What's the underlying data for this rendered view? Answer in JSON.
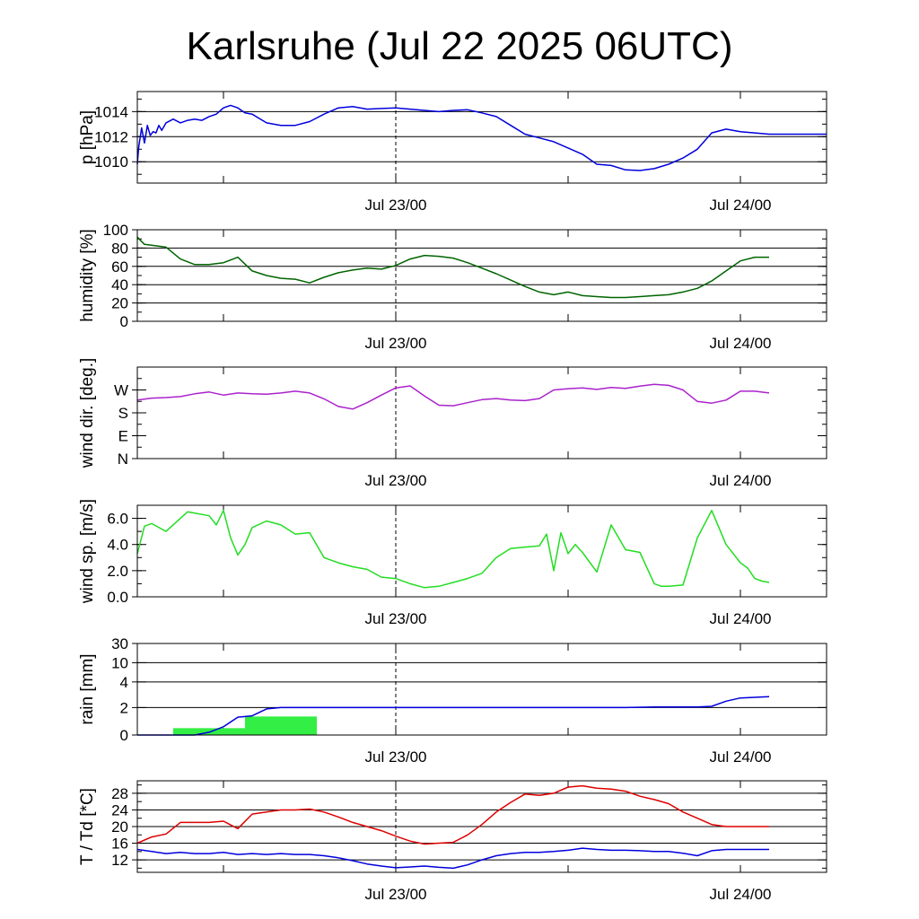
{
  "title": "Karlsruhe (Jul 22 2025 06UTC)",
  "chart_data": [
    {
      "type": "line",
      "ylabel": "p [hPa]",
      "xticks": [
        "Jul 23/00",
        "Jul 24/00"
      ],
      "ylim": [
        1008.3,
        1015.6
      ],
      "yticks": [
        1010,
        1012,
        1014
      ],
      "ytick_labels": [
        "1010",
        "1012",
        "1014"
      ],
      "grid_lines": [
        1010,
        1012,
        1014
      ],
      "colors": [
        "#0000dd"
      ],
      "series": [
        {
          "x": [
            6,
            6.1,
            6.3,
            6.5,
            6.7,
            6.9,
            7.1,
            7.3,
            7.5,
            7.7,
            8,
            8.5,
            9,
            9.5,
            10,
            10.5,
            11,
            11.5,
            12,
            12.5,
            13,
            13.5,
            14,
            15,
            16,
            17,
            18,
            19,
            20,
            21,
            22,
            23,
            24,
            25,
            26,
            27,
            28,
            29,
            30,
            31,
            32,
            33,
            34,
            35,
            36,
            37,
            38,
            39,
            40,
            41,
            42,
            43,
            44,
            45,
            46,
            47,
            48,
            49,
            50,
            51,
            52,
            53,
            54
          ],
          "y": [
            1009.8,
            1011.2,
            1012.7,
            1011.5,
            1012.9,
            1012.1,
            1012.4,
            1012.3,
            1012.9,
            1012.5,
            1013.1,
            1013.4,
            1013.1,
            1013.3,
            1013.4,
            1013.3,
            1013.6,
            1013.8,
            1014.3,
            1014.5,
            1014.3,
            1013.9,
            1013.8,
            1013.1,
            1012.9,
            1012.9,
            1013.2,
            1013.8,
            1014.3,
            1014.4,
            1014.2,
            1014.25,
            1014.3,
            1014.2,
            1014.1,
            1014.0,
            1014.1,
            1014.15,
            1013.9,
            1013.6,
            1012.9,
            1012.2,
            1011.9,
            1011.6,
            1011.1,
            1010.6,
            1009.8,
            1009.7,
            1009.35,
            1009.3,
            1009.45,
            1009.8,
            1010.3,
            1011.0,
            1012.3,
            1012.6,
            1012.4,
            1012.3,
            1012.2,
            1012.2,
            1012.2,
            1012.2,
            1012.2
          ]
        }
      ]
    },
    {
      "type": "line",
      "ylabel": "humidity [%]",
      "xticks": [
        "Jul 23/00",
        "Jul 24/00"
      ],
      "ylim": [
        0,
        100
      ],
      "yticks": [
        0,
        20,
        40,
        60,
        80,
        100
      ],
      "ytick_labels": [
        "0",
        "20",
        "40",
        "60",
        "80",
        "100"
      ],
      "grid_lines": [
        20,
        40,
        60,
        80
      ],
      "colors": [
        "#006400"
      ],
      "series": [
        {
          "x": [
            6,
            6.5,
            7,
            8,
            9,
            10,
            11,
            12,
            13,
            14,
            15,
            16,
            17,
            18,
            19,
            20,
            21,
            22,
            23,
            24,
            25,
            26,
            27,
            28,
            29,
            30,
            31,
            32,
            33,
            34,
            35,
            36,
            37,
            38,
            39,
            40,
            41,
            42,
            43,
            44,
            45,
            46,
            47,
            48,
            49,
            50
          ],
          "y": [
            92,
            84,
            83,
            81,
            68,
            62,
            62,
            64,
            70,
            55,
            50,
            47,
            46,
            42,
            48,
            53,
            56,
            58,
            57,
            61,
            68,
            72,
            71,
            69,
            64,
            58,
            52,
            45,
            38,
            32,
            29,
            32,
            28,
            27,
            26,
            26,
            27,
            28,
            29,
            32,
            36,
            44,
            55,
            66,
            70,
            70
          ]
        }
      ]
    },
    {
      "type": "line",
      "ylabel": "wind dir. [deg.]",
      "xticks": [
        "Jul 23/00",
        "Jul 24/00"
      ],
      "ylim": [
        0,
        360
      ],
      "yticks": [
        0,
        90,
        180,
        270
      ],
      "ytick_labels": [
        "N",
        "E",
        "S",
        "W"
      ],
      "grid_lines": [],
      "colors": [
        "#aa22cc"
      ],
      "series": [
        {
          "x": [
            6,
            7,
            8,
            9,
            10,
            11,
            12,
            13,
            14,
            15,
            16,
            17,
            18,
            19,
            20,
            21,
            22,
            23,
            24,
            25,
            26,
            27,
            28,
            29,
            30,
            31,
            32,
            33,
            34,
            35,
            36,
            37,
            38,
            39,
            40,
            41,
            42,
            43,
            44,
            45,
            46,
            47,
            48,
            49,
            50
          ],
          "y": [
            230,
            238,
            240,
            244,
            255,
            262,
            250,
            258,
            255,
            253,
            258,
            265,
            258,
            235,
            205,
            195,
            220,
            250,
            278,
            286,
            246,
            210,
            208,
            220,
            232,
            236,
            230,
            228,
            236,
            270,
            275,
            278,
            272,
            280,
            276,
            285,
            292,
            288,
            270,
            225,
            218,
            230,
            265,
            265,
            258
          ]
        }
      ]
    },
    {
      "type": "line",
      "ylabel": "wind sp. [m/s]",
      "xticks": [
        "Jul 23/00",
        "Jul 24/00"
      ],
      "ylim": [
        0,
        7
      ],
      "yticks": [
        0,
        2,
        4,
        6
      ],
      "ytick_labels": [
        "0.0",
        "2.0",
        "4.0",
        "6.0"
      ],
      "grid_lines": [],
      "colors": [
        "#22dd22"
      ],
      "series": [
        {
          "x": [
            6,
            6.5,
            7,
            8,
            9,
            9.5,
            10,
            11,
            11.5,
            12,
            12.5,
            13,
            13.5,
            14,
            15,
            16,
            17,
            18,
            19,
            20,
            21,
            22,
            23,
            24,
            25,
            26,
            27,
            28,
            29,
            30,
            31,
            32,
            33,
            34,
            34.5,
            35,
            35.5,
            36,
            36.5,
            37,
            38,
            39,
            40,
            41,
            42,
            42.5,
            43,
            44,
            45,
            46,
            47,
            48,
            48.5,
            49,
            49.5,
            50
          ],
          "y": [
            3.3,
            5.4,
            5.6,
            5.0,
            6.0,
            6.5,
            6.4,
            6.2,
            5.5,
            6.6,
            4.5,
            3.2,
            4.0,
            5.3,
            5.8,
            5.5,
            4.8,
            4.9,
            3.0,
            2.6,
            2.3,
            2.1,
            1.5,
            1.4,
            1.0,
            0.7,
            0.8,
            1.1,
            1.4,
            1.8,
            3.0,
            3.7,
            3.8,
            3.9,
            4.8,
            2.0,
            4.9,
            3.3,
            4.0,
            3.4,
            1.9,
            5.5,
            3.6,
            3.4,
            1.0,
            0.8,
            0.8,
            0.9,
            4.5,
            6.6,
            4.0,
            2.6,
            2.2,
            1.4,
            1.2,
            1.1
          ]
        }
      ]
    },
    {
      "type": "bar",
      "ylabel": "rain [mm]",
      "xticks": [
        "Jul 23/00",
        "Jul 24/00"
      ],
      "ylim": [
        0,
        30
      ],
      "yticks": [
        0,
        2,
        4,
        10,
        30
      ],
      "ytick_labels": [
        "0",
        "2",
        "4",
        "10",
        "30"
      ],
      "grid_lines": [
        2,
        4,
        10,
        30
      ],
      "scale": "nonlinear",
      "colors": [
        "#33ee44",
        "#0000dd"
      ],
      "bars": [
        {
          "start": 8.5,
          "end": 13.5,
          "value": 0.5
        },
        {
          "start": 13.5,
          "end": 18.5,
          "value": 1.35
        }
      ],
      "series": [
        {
          "x": [
            6,
            10,
            11,
            12,
            13,
            14,
            15,
            16,
            24,
            30,
            40,
            42,
            45,
            46,
            47,
            48,
            50
          ],
          "y": [
            0,
            0,
            0.2,
            0.6,
            1.3,
            1.4,
            1.9,
            2.0,
            2.0,
            2.0,
            2.0,
            2.05,
            2.05,
            2.1,
            2.5,
            2.75,
            2.85
          ]
        }
      ]
    },
    {
      "type": "line",
      "ylabel": "T / Td [*C]",
      "xticks": [
        "Jul 23/00",
        "Jul 24/00"
      ],
      "ylim": [
        9,
        31
      ],
      "yticks": [
        12,
        16,
        20,
        24,
        28
      ],
      "ytick_labels": [
        "12",
        "16",
        "20",
        "24",
        "28"
      ],
      "grid_lines": [
        12,
        16,
        20,
        24,
        28
      ],
      "colors": [
        "#dd0000",
        "#0000dd"
      ],
      "series": [
        {
          "x": [
            6,
            7,
            8,
            9,
            10,
            11,
            12,
            13,
            14,
            15,
            16,
            17,
            18,
            19,
            20,
            21,
            22,
            23,
            24,
            25,
            26,
            27,
            28,
            29,
            30,
            31,
            32,
            33,
            34,
            35,
            36,
            37,
            38,
            39,
            40,
            41,
            42,
            43,
            44,
            45,
            46,
            47,
            48,
            49,
            50
          ],
          "y": [
            16,
            17.5,
            18.2,
            21,
            21,
            21,
            21.3,
            19.5,
            23,
            23.5,
            24,
            24,
            24.2,
            23.5,
            22.3,
            21,
            20,
            19,
            17.7,
            16.5,
            15.8,
            16,
            16.2,
            18,
            20.5,
            23.5,
            25.8,
            27.8,
            27.5,
            28,
            29.5,
            29.8,
            29.2,
            29,
            28.5,
            27.3,
            26.5,
            25.5,
            23.5,
            22,
            20.5,
            20,
            20,
            20,
            20
          ]
        },
        {
          "x": [
            6,
            7,
            8,
            9,
            10,
            11,
            12,
            13,
            14,
            15,
            16,
            17,
            18,
            19,
            20,
            21,
            22,
            23,
            24,
            25,
            26,
            27,
            28,
            29,
            30,
            31,
            32,
            33,
            34,
            35,
            36,
            37,
            38,
            39,
            40,
            41,
            42,
            43,
            44,
            45,
            46,
            47,
            48,
            49,
            50
          ],
          "y": [
            14.5,
            14,
            13.5,
            13.8,
            13.5,
            13.5,
            13.8,
            13.3,
            13.5,
            13.3,
            13.5,
            13.3,
            13.3,
            13,
            12.5,
            11.8,
            11,
            10.5,
            10.1,
            10.3,
            10.5,
            10.2,
            10,
            10.8,
            12,
            13,
            13.5,
            13.8,
            13.8,
            14,
            14.3,
            14.8,
            14.5,
            14.3,
            14.3,
            14.2,
            14,
            14,
            13.6,
            13,
            14.2,
            14.5,
            14.5,
            14.5,
            14.5
          ]
        }
      ]
    }
  ]
}
